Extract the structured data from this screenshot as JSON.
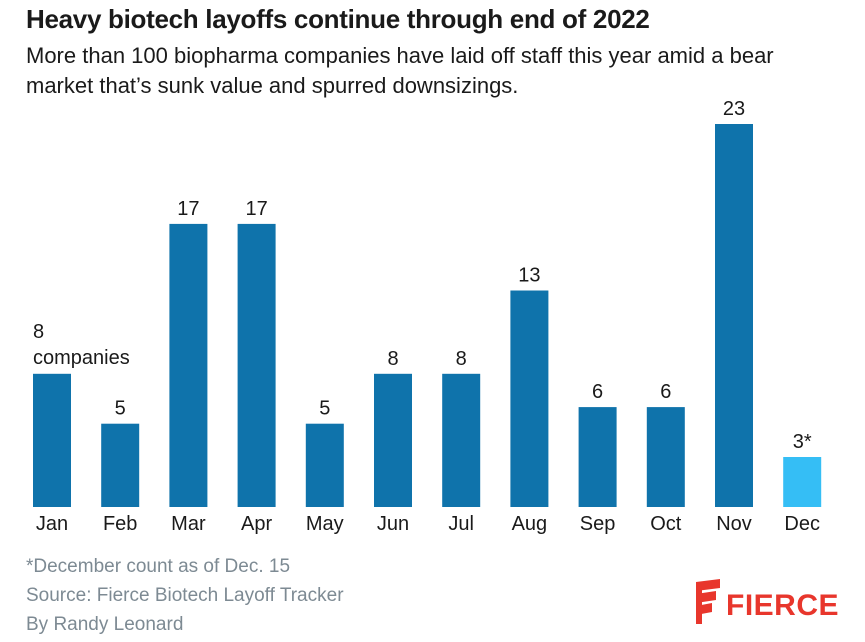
{
  "title": "Heavy biotech layoffs continue through end of 2022",
  "subtitle": "More than 100 biopharma companies have laid off staff this year amid a bear market that’s sunk value and spurred downsizings.",
  "chart_data": {
    "type": "bar",
    "categories": [
      "Jan",
      "Feb",
      "Mar",
      "Apr",
      "May",
      "Jun",
      "Jul",
      "Aug",
      "Sep",
      "Oct",
      "Nov",
      "Dec"
    ],
    "values": [
      8,
      5,
      17,
      17,
      5,
      8,
      8,
      13,
      6,
      6,
      23,
      3
    ],
    "data_labels": [
      "8",
      "5",
      "17",
      "17",
      "5",
      "8",
      "8",
      "13",
      "6",
      "6",
      "23",
      "3*"
    ],
    "annotation": "companies",
    "colors": [
      "#0f73ab",
      "#0f73ab",
      "#0f73ab",
      "#0f73ab",
      "#0f73ab",
      "#0f73ab",
      "#0f73ab",
      "#0f73ab",
      "#0f73ab",
      "#0f73ab",
      "#0f73ab",
      "#35bef5"
    ],
    "ylim": [
      0,
      23
    ],
    "grid": false,
    "legend": "none"
  },
  "footer": {
    "note": "*December count as of Dec. 15",
    "source": "Source: Fierce Biotech Layoff Tracker",
    "byline": "By Randy Leonard"
  },
  "logo": {
    "text": "FIERCE",
    "colors": {
      "mark": "#e8362c",
      "text": "#e8362c"
    }
  }
}
